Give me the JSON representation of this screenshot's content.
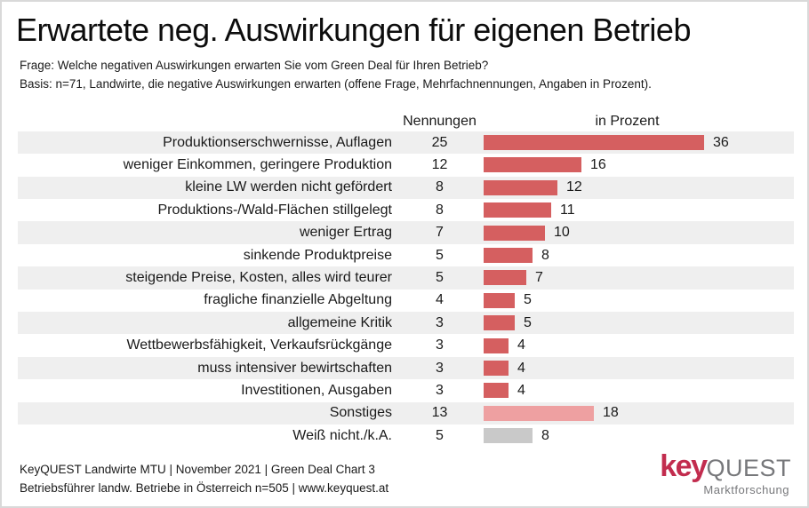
{
  "header": {
    "title": "Erwartete neg. Auswirkungen für eigenen Betrieb",
    "question": "Frage: Welche negativen Auswirkungen erwarten Sie vom Green Deal für Ihren Betrieb?",
    "basis": "Basis: n=71, Landwirte, die negative Auswirkungen erwarten (offene Frage, Mehrfachnennungen, Angaben in Prozent)."
  },
  "table": {
    "col_count_label": "Nennungen",
    "col_percent_label": "in Prozent",
    "rows": [
      {
        "label": "Produktionserschwernisse, Auflagen",
        "count": "25",
        "percent": "36",
        "style": "normal"
      },
      {
        "label": "weniger Einkommen, geringere Produktion",
        "count": "12",
        "percent": "16",
        "style": "normal"
      },
      {
        "label": "kleine LW werden nicht gefördert",
        "count": "8",
        "percent": "12",
        "style": "normal"
      },
      {
        "label": "Produktions-/Wald-Flächen stillgelegt",
        "count": "8",
        "percent": "11",
        "style": "normal"
      },
      {
        "label": "weniger Ertrag",
        "count": "7",
        "percent": "10",
        "style": "normal"
      },
      {
        "label": "sinkende Produktpreise",
        "count": "5",
        "percent": "8",
        "style": "normal"
      },
      {
        "label": "steigende Preise, Kosten, alles wird teurer",
        "count": "5",
        "percent": "7",
        "style": "normal"
      },
      {
        "label": "fragliche finanzielle Abgeltung",
        "count": "4",
        "percent": "5",
        "style": "normal"
      },
      {
        "label": "allgemeine Kritik",
        "count": "3",
        "percent": "5",
        "style": "normal"
      },
      {
        "label": "Wettbewerbsfähigkeit, Verkaufsrückgänge",
        "count": "3",
        "percent": "4",
        "style": "normal"
      },
      {
        "label": "muss intensiver bewirtschaften",
        "count": "3",
        "percent": "4",
        "style": "normal"
      },
      {
        "label": "Investitionen, Ausgaben",
        "count": "3",
        "percent": "4",
        "style": "normal"
      },
      {
        "label": "Sonstiges",
        "count": "13",
        "percent": "18",
        "style": "light"
      },
      {
        "label": "Weiß nicht./k.A.",
        "count": "5",
        "percent": "8",
        "style": "gray"
      }
    ]
  },
  "footer": {
    "line1": "KeyQUEST Landwirte MTU | November 2021 | Green Deal Chart 3",
    "line2": "Betriebsführer landw. Betriebe in Österreich n=505 | www.keyquest.at"
  },
  "logo": {
    "part1": "key",
    "part2": "QUEST",
    "tagline": "Marktforschung"
  },
  "colors": {
    "bar_normal": "#d55f60",
    "bar_light": "#eea0a1",
    "bar_gray": "#c9c9c9",
    "stripe": "#efefef",
    "logo_red": "#c22c4e",
    "logo_gray": "#77787b"
  },
  "chart_data": {
    "type": "bar",
    "orientation": "horizontal",
    "title": "Erwartete neg. Auswirkungen für eigenen Betrieb",
    "subtitle": "Frage: Welche negativen Auswirkungen erwarten Sie vom Green Deal für Ihren Betrieb? Basis: n=71, Landwirte, die negative Auswirkungen erwarten (offene Frage, Mehrfachnennungen, Angaben in Prozent).",
    "categories": [
      "Produktionserschwernisse, Auflagen",
      "weniger Einkommen, geringere Produktion",
      "kleine LW werden nicht gefördert",
      "Produktions-/Wald-Flächen stillgelegt",
      "weniger Ertrag",
      "sinkende Produktpreise",
      "steigende Preise, Kosten, alles wird teurer",
      "fragliche finanzielle Abgeltung",
      "allgemeine Kritik",
      "Wettbewerbsfähigkeit, Verkaufsrückgänge",
      "muss intensiver bewirtschaften",
      "Investitionen, Ausgaben",
      "Sonstiges",
      "Weiß nicht./k.A."
    ],
    "series": [
      {
        "name": "Nennungen",
        "values": [
          25,
          12,
          8,
          8,
          7,
          5,
          5,
          4,
          3,
          3,
          3,
          3,
          13,
          5
        ]
      },
      {
        "name": "in Prozent",
        "values": [
          36,
          16,
          12,
          11,
          10,
          8,
          7,
          5,
          5,
          4,
          4,
          4,
          18,
          8
        ]
      }
    ],
    "xlim": [
      0,
      36
    ],
    "grid": false,
    "legend_position": "none"
  }
}
